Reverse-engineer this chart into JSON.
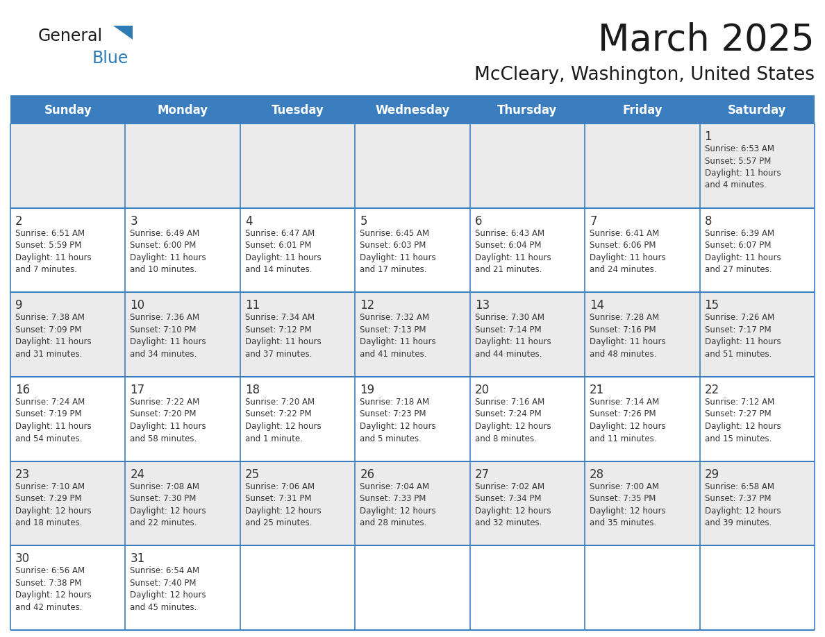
{
  "title": "March 2025",
  "subtitle": "McCleary, Washington, United States",
  "header_color": "#3A7EBF",
  "header_text_color": "#FFFFFF",
  "cell_bg_odd": "#EBEBEB",
  "cell_bg_even": "#FFFFFF",
  "border_color": "#3A7EBF",
  "text_color": "#333333",
  "day_headers": [
    "Sunday",
    "Monday",
    "Tuesday",
    "Wednesday",
    "Thursday",
    "Friday",
    "Saturday"
  ],
  "calendar_data": [
    [
      "",
      "",
      "",
      "",
      "",
      "",
      "1\nSunrise: 6:53 AM\nSunset: 5:57 PM\nDaylight: 11 hours\nand 4 minutes."
    ],
    [
      "2\nSunrise: 6:51 AM\nSunset: 5:59 PM\nDaylight: 11 hours\nand 7 minutes.",
      "3\nSunrise: 6:49 AM\nSunset: 6:00 PM\nDaylight: 11 hours\nand 10 minutes.",
      "4\nSunrise: 6:47 AM\nSunset: 6:01 PM\nDaylight: 11 hours\nand 14 minutes.",
      "5\nSunrise: 6:45 AM\nSunset: 6:03 PM\nDaylight: 11 hours\nand 17 minutes.",
      "6\nSunrise: 6:43 AM\nSunset: 6:04 PM\nDaylight: 11 hours\nand 21 minutes.",
      "7\nSunrise: 6:41 AM\nSunset: 6:06 PM\nDaylight: 11 hours\nand 24 minutes.",
      "8\nSunrise: 6:39 AM\nSunset: 6:07 PM\nDaylight: 11 hours\nand 27 minutes."
    ],
    [
      "9\nSunrise: 7:38 AM\nSunset: 7:09 PM\nDaylight: 11 hours\nand 31 minutes.",
      "10\nSunrise: 7:36 AM\nSunset: 7:10 PM\nDaylight: 11 hours\nand 34 minutes.",
      "11\nSunrise: 7:34 AM\nSunset: 7:12 PM\nDaylight: 11 hours\nand 37 minutes.",
      "12\nSunrise: 7:32 AM\nSunset: 7:13 PM\nDaylight: 11 hours\nand 41 minutes.",
      "13\nSunrise: 7:30 AM\nSunset: 7:14 PM\nDaylight: 11 hours\nand 44 minutes.",
      "14\nSunrise: 7:28 AM\nSunset: 7:16 PM\nDaylight: 11 hours\nand 48 minutes.",
      "15\nSunrise: 7:26 AM\nSunset: 7:17 PM\nDaylight: 11 hours\nand 51 minutes."
    ],
    [
      "16\nSunrise: 7:24 AM\nSunset: 7:19 PM\nDaylight: 11 hours\nand 54 minutes.",
      "17\nSunrise: 7:22 AM\nSunset: 7:20 PM\nDaylight: 11 hours\nand 58 minutes.",
      "18\nSunrise: 7:20 AM\nSunset: 7:22 PM\nDaylight: 12 hours\nand 1 minute.",
      "19\nSunrise: 7:18 AM\nSunset: 7:23 PM\nDaylight: 12 hours\nand 5 minutes.",
      "20\nSunrise: 7:16 AM\nSunset: 7:24 PM\nDaylight: 12 hours\nand 8 minutes.",
      "21\nSunrise: 7:14 AM\nSunset: 7:26 PM\nDaylight: 12 hours\nand 11 minutes.",
      "22\nSunrise: 7:12 AM\nSunset: 7:27 PM\nDaylight: 12 hours\nand 15 minutes."
    ],
    [
      "23\nSunrise: 7:10 AM\nSunset: 7:29 PM\nDaylight: 12 hours\nand 18 minutes.",
      "24\nSunrise: 7:08 AM\nSunset: 7:30 PM\nDaylight: 12 hours\nand 22 minutes.",
      "25\nSunrise: 7:06 AM\nSunset: 7:31 PM\nDaylight: 12 hours\nand 25 minutes.",
      "26\nSunrise: 7:04 AM\nSunset: 7:33 PM\nDaylight: 12 hours\nand 28 minutes.",
      "27\nSunrise: 7:02 AM\nSunset: 7:34 PM\nDaylight: 12 hours\nand 32 minutes.",
      "28\nSunrise: 7:00 AM\nSunset: 7:35 PM\nDaylight: 12 hours\nand 35 minutes.",
      "29\nSunrise: 6:58 AM\nSunset: 7:37 PM\nDaylight: 12 hours\nand 39 minutes."
    ],
    [
      "30\nSunrise: 6:56 AM\nSunset: 7:38 PM\nDaylight: 12 hours\nand 42 minutes.",
      "31\nSunrise: 6:54 AM\nSunset: 7:40 PM\nDaylight: 12 hours\nand 45 minutes.",
      "",
      "",
      "",
      "",
      ""
    ]
  ],
  "logo_text_general": "General",
  "logo_text_blue": "Blue",
  "logo_color_general": "#1a1a1a",
  "logo_color_blue": "#2E7BB5",
  "logo_triangle_color": "#2E7BB5",
  "title_fontsize": 38,
  "subtitle_fontsize": 19,
  "header_fontsize": 12,
  "day_num_fontsize": 12,
  "cell_text_fontsize": 8.5
}
